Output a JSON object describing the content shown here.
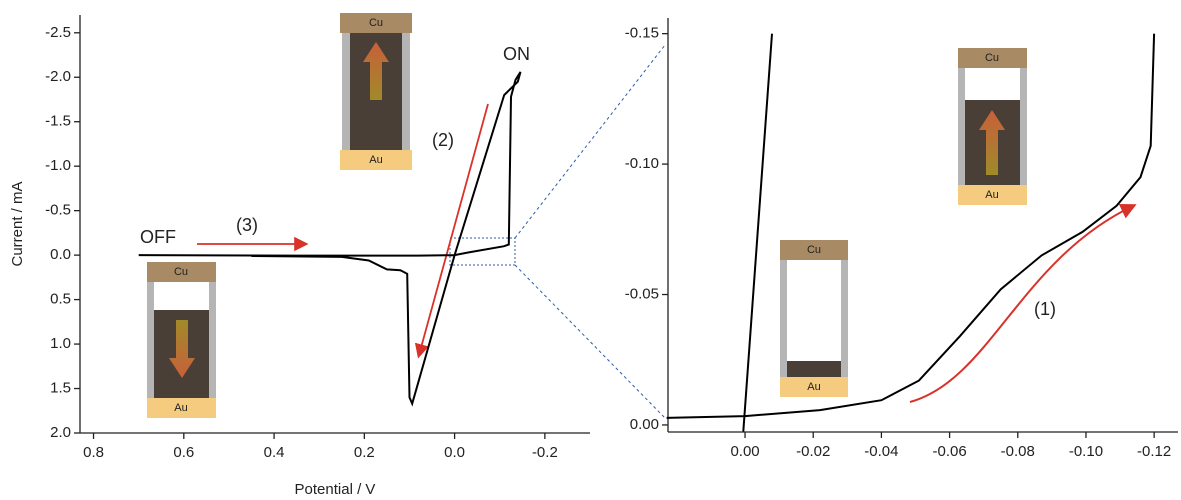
{
  "chart_data": [
    {
      "type": "line",
      "x": [
        0.7,
        0.35,
        0.08,
        0.0,
        -0.03,
        -0.11,
        -0.12,
        -0.125,
        -0.135,
        -0.146,
        -0.14,
        -0.11,
        0.0,
        0.094,
        0.1,
        0.105,
        0.12,
        0.15,
        0.19,
        0.25,
        0.45
      ],
      "values": [
        0.0,
        0.005,
        0.005,
        0.0,
        -0.03,
        -0.1,
        -0.12,
        -1.78,
        -1.97,
        -2.06,
        -1.95,
        -1.8,
        0.0,
        1.67,
        1.6,
        0.21,
        0.17,
        0.16,
        0.06,
        0.02,
        0.01
      ],
      "color": "#000000",
      "xlabel": "Potential / V",
      "ylabel": "Current / mA",
      "xlim": [
        0.83,
        -0.3
      ],
      "ylim": [
        2.0,
        -2.7
      ],
      "xticks": [
        0.8,
        0.6,
        0.4,
        0.2,
        {
          "value": 0,
          "label": "0.0"
        },
        -0.2
      ],
      "yticks": [
        -2.5,
        {
          "value": -2,
          "label": "-2.0"
        },
        -1.5,
        {
          "value": -1,
          "label": "-1.0"
        },
        -0.5,
        {
          "value": 0,
          "label": "0.0"
        },
        0.5,
        {
          "value": 1,
          "label": "1.0"
        },
        1.5,
        {
          "value": 2,
          "label": "2.0"
        }
      ],
      "annotations": [
        "ON",
        "OFF",
        "(3)",
        "(2)"
      ],
      "insets": [
        {
          "top": "Cu",
          "bottom": "Au"
        },
        {
          "top": "Cu",
          "bottom": "Au"
        }
      ]
    },
    {
      "type": "line",
      "series": [
        {
          "color": "#000000",
          "x": [
            0.0005,
            -0.0079
          ],
          "values": [
            0.0025,
            -0.15
          ]
        },
        {
          "color": "#000000",
          "x": [
            0.023,
            0.0,
            -0.022,
            -0.04,
            -0.051,
            -0.063,
            -0.075,
            -0.087,
            -0.099,
            -0.109,
            -0.116,
            -0.119,
            -0.12
          ],
          "values": [
            -0.0027,
            -0.0034,
            -0.0057,
            -0.0095,
            -0.017,
            -0.034,
            -0.052,
            -0.065,
            -0.074,
            -0.084,
            -0.095,
            -0.107,
            -0.15
          ]
        }
      ],
      "xlim": [
        0.0226,
        -0.127
      ],
      "ylim": [
        0.0027,
        -0.156
      ],
      "xticks": [
        {
          "value": 0,
          "label": "0.00"
        },
        -0.02,
        -0.04,
        -0.06,
        -0.08,
        {
          "value": -0.1,
          "label": "-0.10"
        },
        -0.12
      ],
      "yticks": [
        -0.15,
        {
          "value": -0.1,
          "label": "-0.10"
        },
        -0.05,
        {
          "value": 0,
          "label": "0.00"
        }
      ],
      "annotations": [
        "(1)"
      ],
      "insets": [
        {
          "top": "Cu",
          "bottom": "Au"
        },
        {
          "top": "Cu",
          "bottom": "Au"
        }
      ]
    }
  ]
}
